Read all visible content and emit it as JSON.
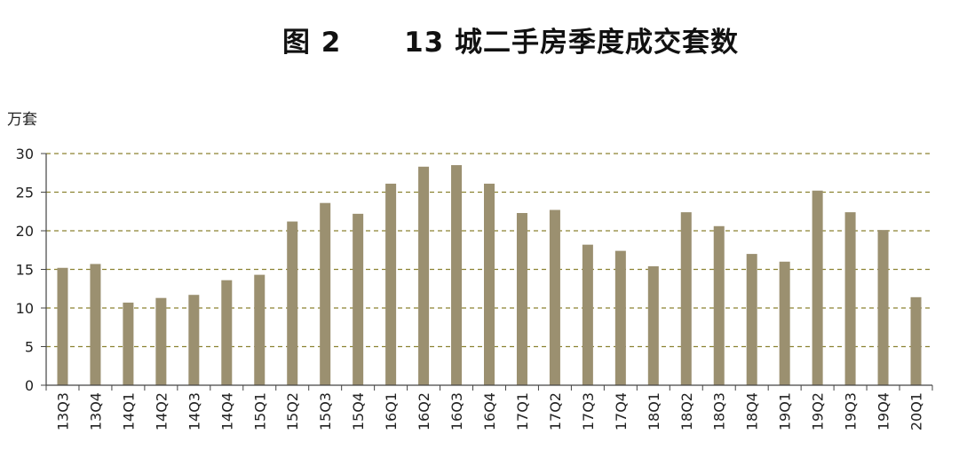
{
  "chart_data": {
    "type": "bar",
    "title": "图 2      13 城二手房季度成交套数",
    "ylabel": "万套",
    "xlabel": "",
    "ylim": [
      0,
      30
    ],
    "yticks": [
      0,
      5,
      10,
      15,
      20,
      25,
      30
    ],
    "grid": "horizontal dashed",
    "legend": "none",
    "bar_color": "#9b9070",
    "grid_color": "#8c8232",
    "categories": [
      "13Q3",
      "13Q4",
      "14Q1",
      "14Q2",
      "14Q3",
      "14Q4",
      "15Q1",
      "15Q2",
      "15Q3",
      "15Q4",
      "16Q1",
      "16Q2",
      "16Q3",
      "16Q4",
      "17Q1",
      "17Q2",
      "17Q3",
      "17Q4",
      "18Q1",
      "18Q2",
      "18Q3",
      "18Q4",
      "19Q1",
      "19Q2",
      "19Q3",
      "19Q4",
      "20Q1"
    ],
    "values": [
      15.2,
      15.7,
      10.7,
      11.3,
      11.7,
      13.6,
      14.3,
      21.2,
      23.6,
      22.2,
      26.1,
      28.3,
      28.5,
      26.1,
      22.3,
      22.7,
      18.2,
      17.4,
      15.4,
      22.4,
      20.6,
      17.0,
      16.0,
      25.2,
      22.4,
      20.1,
      11.4
    ]
  }
}
